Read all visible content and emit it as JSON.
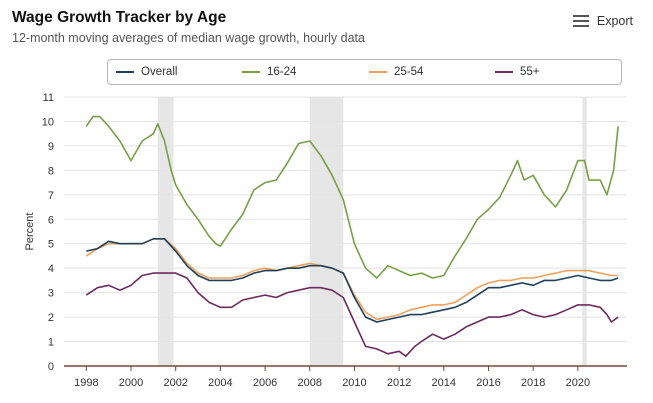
{
  "header": {
    "title": "Wage Growth Tracker by Age",
    "subtitle": "12-month moving averages of median wage growth, hourly data",
    "export_label": "Export",
    "export_icon": "hamburger-menu-icon"
  },
  "chart_data": {
    "type": "line",
    "title": "Wage Growth Tracker by Age",
    "subtitle": "12-month moving averages of median wage growth, hourly data",
    "xlabel": "",
    "ylabel": "Percent",
    "xlim": [
      1997.0,
      2022.2
    ],
    "ylim": [
      0,
      11
    ],
    "xticks": [
      1998,
      2000,
      2002,
      2004,
      2006,
      2008,
      2010,
      2012,
      2014,
      2016,
      2018,
      2020
    ],
    "yticks": [
      0,
      1,
      2,
      3,
      4,
      5,
      6,
      7,
      8,
      9,
      10,
      11
    ],
    "grid": "horizontal",
    "legend_position": "top",
    "shaded_periods": [
      [
        2001.2,
        2001.9
      ],
      [
        2008.0,
        2009.5
      ],
      [
        2020.2,
        2020.4
      ]
    ],
    "series": [
      {
        "name": "Overall",
        "color": "#1f3f5b",
        "points": [
          [
            1998.0,
            4.7
          ],
          [
            1998.5,
            4.8
          ],
          [
            1999.0,
            5.1
          ],
          [
            1999.5,
            5.0
          ],
          [
            2000.0,
            5.0
          ],
          [
            2000.5,
            5.0
          ],
          [
            2001.0,
            5.2
          ],
          [
            2001.5,
            5.2
          ],
          [
            2002.0,
            4.7
          ],
          [
            2002.5,
            4.1
          ],
          [
            2003.0,
            3.7
          ],
          [
            2003.5,
            3.5
          ],
          [
            2004.0,
            3.5
          ],
          [
            2004.5,
            3.5
          ],
          [
            2005.0,
            3.6
          ],
          [
            2005.5,
            3.8
          ],
          [
            2006.0,
            3.9
          ],
          [
            2006.5,
            3.9
          ],
          [
            2007.0,
            4.0
          ],
          [
            2007.5,
            4.0
          ],
          [
            2008.0,
            4.1
          ],
          [
            2008.5,
            4.1
          ],
          [
            2009.0,
            4.0
          ],
          [
            2009.5,
            3.8
          ],
          [
            2010.0,
            2.8
          ],
          [
            2010.5,
            2.0
          ],
          [
            2011.0,
            1.8
          ],
          [
            2011.5,
            1.9
          ],
          [
            2012.0,
            2.0
          ],
          [
            2012.5,
            2.1
          ],
          [
            2013.0,
            2.1
          ],
          [
            2013.5,
            2.2
          ],
          [
            2014.0,
            2.3
          ],
          [
            2014.5,
            2.4
          ],
          [
            2015.0,
            2.6
          ],
          [
            2015.5,
            2.9
          ],
          [
            2016.0,
            3.2
          ],
          [
            2016.5,
            3.2
          ],
          [
            2017.0,
            3.3
          ],
          [
            2017.5,
            3.4
          ],
          [
            2018.0,
            3.3
          ],
          [
            2018.5,
            3.5
          ],
          [
            2019.0,
            3.5
          ],
          [
            2019.5,
            3.6
          ],
          [
            2020.0,
            3.7
          ],
          [
            2020.5,
            3.6
          ],
          [
            2021.0,
            3.5
          ],
          [
            2021.5,
            3.5
          ],
          [
            2021.8,
            3.6
          ]
        ]
      },
      {
        "name": "16-24",
        "color": "#76a046",
        "points": [
          [
            1998.0,
            9.8
          ],
          [
            1998.3,
            10.2
          ],
          [
            1998.6,
            10.2
          ],
          [
            1999.0,
            9.8
          ],
          [
            1999.5,
            9.2
          ],
          [
            2000.0,
            8.4
          ],
          [
            2000.5,
            9.2
          ],
          [
            2001.0,
            9.5
          ],
          [
            2001.2,
            9.9
          ],
          [
            2001.5,
            9.2
          ],
          [
            2001.8,
            8.0
          ],
          [
            2002.0,
            7.4
          ],
          [
            2002.5,
            6.6
          ],
          [
            2003.0,
            6.0
          ],
          [
            2003.5,
            5.3
          ],
          [
            2003.8,
            5.0
          ],
          [
            2004.0,
            4.9
          ],
          [
            2004.5,
            5.6
          ],
          [
            2005.0,
            6.2
          ],
          [
            2005.5,
            7.2
          ],
          [
            2006.0,
            7.5
          ],
          [
            2006.5,
            7.6
          ],
          [
            2007.0,
            8.3
          ],
          [
            2007.5,
            9.1
          ],
          [
            2008.0,
            9.2
          ],
          [
            2008.5,
            8.6
          ],
          [
            2009.0,
            7.8
          ],
          [
            2009.5,
            6.8
          ],
          [
            2010.0,
            5.0
          ],
          [
            2010.5,
            4.0
          ],
          [
            2011.0,
            3.6
          ],
          [
            2011.5,
            4.1
          ],
          [
            2012.0,
            3.9
          ],
          [
            2012.5,
            3.7
          ],
          [
            2013.0,
            3.8
          ],
          [
            2013.5,
            3.6
          ],
          [
            2014.0,
            3.7
          ],
          [
            2014.5,
            4.5
          ],
          [
            2015.0,
            5.2
          ],
          [
            2015.5,
            6.0
          ],
          [
            2016.0,
            6.4
          ],
          [
            2016.5,
            6.9
          ],
          [
            2017.0,
            7.8
          ],
          [
            2017.3,
            8.4
          ],
          [
            2017.6,
            7.6
          ],
          [
            2018.0,
            7.8
          ],
          [
            2018.5,
            7.0
          ],
          [
            2019.0,
            6.5
          ],
          [
            2019.5,
            7.2
          ],
          [
            2020.0,
            8.4
          ],
          [
            2020.3,
            8.4
          ],
          [
            2020.5,
            7.6
          ],
          [
            2021.0,
            7.6
          ],
          [
            2021.3,
            7.0
          ],
          [
            2021.6,
            8.0
          ],
          [
            2021.8,
            9.8
          ]
        ]
      },
      {
        "name": "25-54",
        "color": "#f0a05a",
        "points": [
          [
            1998.0,
            4.5
          ],
          [
            1998.5,
            4.8
          ],
          [
            1999.0,
            5.0
          ],
          [
            1999.5,
            5.0
          ],
          [
            2000.0,
            5.0
          ],
          [
            2000.5,
            5.0
          ],
          [
            2001.0,
            5.2
          ],
          [
            2001.5,
            5.2
          ],
          [
            2002.0,
            4.8
          ],
          [
            2002.5,
            4.2
          ],
          [
            2003.0,
            3.8
          ],
          [
            2003.5,
            3.6
          ],
          [
            2004.0,
            3.6
          ],
          [
            2004.5,
            3.6
          ],
          [
            2005.0,
            3.7
          ],
          [
            2005.5,
            3.9
          ],
          [
            2006.0,
            4.0
          ],
          [
            2006.5,
            3.9
          ],
          [
            2007.0,
            4.0
          ],
          [
            2007.5,
            4.1
          ],
          [
            2008.0,
            4.2
          ],
          [
            2008.5,
            4.1
          ],
          [
            2009.0,
            4.0
          ],
          [
            2009.5,
            3.8
          ],
          [
            2010.0,
            2.9
          ],
          [
            2010.5,
            2.2
          ],
          [
            2011.0,
            1.9
          ],
          [
            2011.5,
            2.0
          ],
          [
            2012.0,
            2.1
          ],
          [
            2012.5,
            2.3
          ],
          [
            2013.0,
            2.4
          ],
          [
            2013.5,
            2.5
          ],
          [
            2014.0,
            2.5
          ],
          [
            2014.5,
            2.6
          ],
          [
            2015.0,
            2.9
          ],
          [
            2015.5,
            3.2
          ],
          [
            2016.0,
            3.4
          ],
          [
            2016.5,
            3.5
          ],
          [
            2017.0,
            3.5
          ],
          [
            2017.5,
            3.6
          ],
          [
            2018.0,
            3.6
          ],
          [
            2018.5,
            3.7
          ],
          [
            2019.0,
            3.8
          ],
          [
            2019.5,
            3.9
          ],
          [
            2020.0,
            3.9
          ],
          [
            2020.5,
            3.9
          ],
          [
            2021.0,
            3.8
          ],
          [
            2021.5,
            3.7
          ],
          [
            2021.8,
            3.7
          ]
        ]
      },
      {
        "name": "55+",
        "color": "#6d2a5e",
        "points": [
          [
            1998.0,
            2.9
          ],
          [
            1998.5,
            3.2
          ],
          [
            1999.0,
            3.3
          ],
          [
            1999.5,
            3.1
          ],
          [
            2000.0,
            3.3
          ],
          [
            2000.5,
            3.7
          ],
          [
            2001.0,
            3.8
          ],
          [
            2001.5,
            3.8
          ],
          [
            2002.0,
            3.8
          ],
          [
            2002.5,
            3.6
          ],
          [
            2003.0,
            3.0
          ],
          [
            2003.5,
            2.6
          ],
          [
            2004.0,
            2.4
          ],
          [
            2004.5,
            2.4
          ],
          [
            2005.0,
            2.7
          ],
          [
            2005.5,
            2.8
          ],
          [
            2006.0,
            2.9
          ],
          [
            2006.5,
            2.8
          ],
          [
            2007.0,
            3.0
          ],
          [
            2007.5,
            3.1
          ],
          [
            2008.0,
            3.2
          ],
          [
            2008.5,
            3.2
          ],
          [
            2009.0,
            3.1
          ],
          [
            2009.5,
            2.8
          ],
          [
            2010.0,
            1.8
          ],
          [
            2010.5,
            0.8
          ],
          [
            2011.0,
            0.7
          ],
          [
            2011.5,
            0.5
          ],
          [
            2012.0,
            0.6
          ],
          [
            2012.3,
            0.4
          ],
          [
            2012.7,
            0.8
          ],
          [
            2013.0,
            1.0
          ],
          [
            2013.5,
            1.3
          ],
          [
            2014.0,
            1.1
          ],
          [
            2014.5,
            1.3
          ],
          [
            2015.0,
            1.6
          ],
          [
            2015.5,
            1.8
          ],
          [
            2016.0,
            2.0
          ],
          [
            2016.5,
            2.0
          ],
          [
            2017.0,
            2.1
          ],
          [
            2017.5,
            2.3
          ],
          [
            2018.0,
            2.1
          ],
          [
            2018.5,
            2.0
          ],
          [
            2019.0,
            2.1
          ],
          [
            2019.5,
            2.3
          ],
          [
            2020.0,
            2.5
          ],
          [
            2020.5,
            2.5
          ],
          [
            2021.0,
            2.4
          ],
          [
            2021.3,
            2.1
          ],
          [
            2021.5,
            1.8
          ],
          [
            2021.8,
            2.0
          ]
        ]
      }
    ]
  }
}
